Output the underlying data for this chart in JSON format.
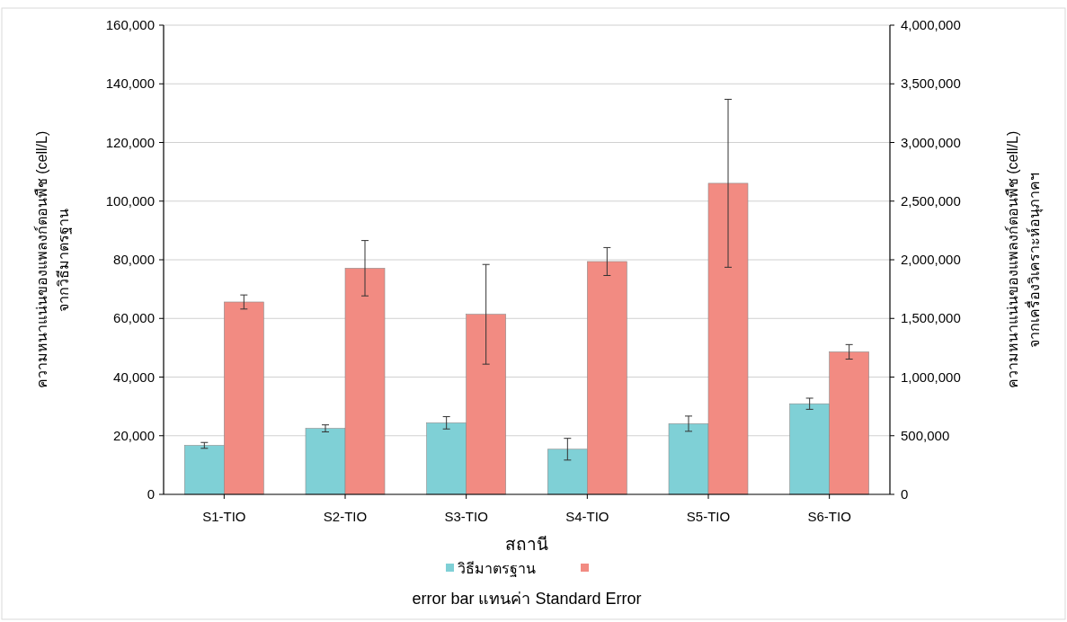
{
  "chart_data": {
    "type": "bar",
    "categories": [
      "S1-TIO",
      "S2-TIO",
      "S3-TIO",
      "S4-TIO",
      "S5-TIO",
      "S6-TIO"
    ],
    "xlabel": "สถานี",
    "ylabel": "ความหนาแน่นของแพลงก์ตอนพืช (cell/L)\nจากวิธีมาตรฐาน",
    "y2label": "ความหนาแน่นของแพลงก์ตอนพืช (cell/L)\nจากเครื่องวิเคราะห์อนุภาคฯ",
    "series": [
      {
        "name": "วิธีมาตรฐาน",
        "color": "#7fd0d6",
        "values": [
          16700,
          22500,
          24400,
          15400,
          24100,
          30900
        ],
        "errors": [
          1000,
          1200,
          2100,
          3700,
          2600,
          1900
        ]
      },
      {
        "color": "#f28b82",
        "axis": "y2",
        "values": [
          1640000,
          1928000,
          1535000,
          1985000,
          2652000,
          1215000
        ],
        "errors": [
          60000,
          236000,
          425000,
          119000,
          716000,
          62000
        ]
      }
    ],
    "ylim": [
      0,
      160000
    ],
    "yticks": [
      0,
      {
        "value": 20000,
        "label": "20,000"
      },
      {
        "value": 40000,
        "label": "40,000"
      },
      {
        "value": 60000,
        "label": "60,000"
      },
      {
        "value": 80000,
        "label": "80,000"
      },
      {
        "value": 100000,
        "label": "100,000"
      },
      {
        "value": 120000,
        "label": "120,000"
      },
      {
        "value": 140000,
        "label": "140,000"
      },
      {
        "value": 160000,
        "label": "160,000"
      }
    ],
    "y2lim": [
      0,
      4000000
    ],
    "y2ticks": [
      0,
      {
        "value": 500000,
        "label": "500,000"
      },
      {
        "value": 1000000,
        "label": "1,000,000"
      },
      {
        "value": 1500000,
        "label": "1,500,000"
      },
      {
        "value": 2000000,
        "label": "2,000,000"
      },
      {
        "value": 2500000,
        "label": "2,500,000"
      },
      {
        "value": 3000000,
        "label": "3,000,000"
      },
      {
        "value": 3500000,
        "label": "3,500,000"
      },
      {
        "value": 4000000,
        "label": "4,000,000"
      }
    ],
    "grid": "y",
    "legend": "bottom",
    "annotations": [
      "error bar แทนค่า Standard Error"
    ]
  }
}
